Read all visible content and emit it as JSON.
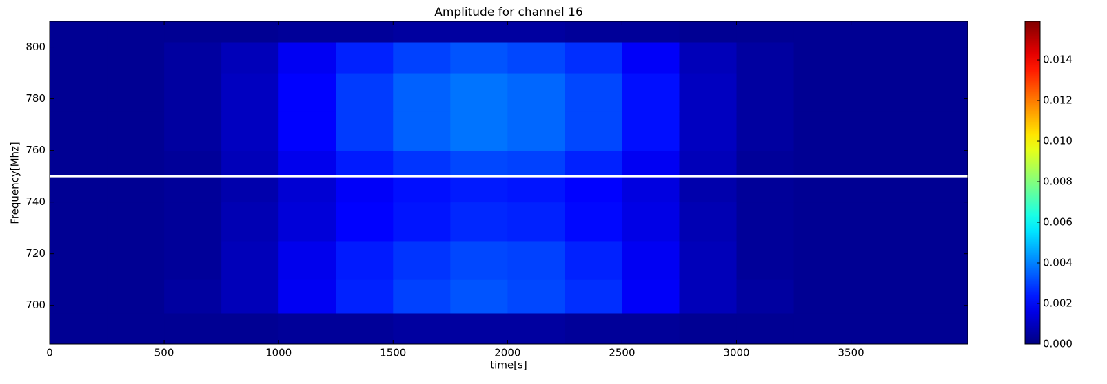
{
  "chart_data": {
    "type": "heatmap",
    "title": "Amplitude for channel 16",
    "x_label": "time[s]",
    "y_label": "Frequency[Mhz]",
    "xlim": [
      0,
      4010
    ],
    "ylim": [
      685,
      810
    ],
    "xticks": [
      0,
      500,
      1000,
      1500,
      2000,
      2500,
      3000,
      3500
    ],
    "yticks": [
      700,
      720,
      740,
      760,
      780,
      800
    ],
    "x_edges": [
      0,
      250,
      500,
      750,
      1000,
      1250,
      1500,
      1750,
      2000,
      2250,
      2500,
      2750,
      3000,
      3250,
      3500,
      3750,
      4010
    ],
    "y_edges": [
      685,
      697,
      710,
      725,
      740,
      750,
      760,
      775,
      790,
      802,
      810
    ],
    "values": [
      [
        0.0003,
        0.0003,
        0.0003,
        0.0003,
        0.0004,
        0.0004,
        0.0005,
        0.0005,
        0.0005,
        0.0004,
        0.0004,
        0.0003,
        0.0003,
        0.0003,
        0.0003,
        0.0003
      ],
      [
        0.0003,
        0.0003,
        0.0005,
        0.0009,
        0.0018,
        0.0025,
        0.003,
        0.0033,
        0.0031,
        0.0027,
        0.0019,
        0.0009,
        0.0005,
        0.0003,
        0.0003,
        0.0003
      ],
      [
        0.0003,
        0.0003,
        0.0004,
        0.0009,
        0.0017,
        0.0024,
        0.0028,
        0.0031,
        0.003,
        0.0025,
        0.0018,
        0.0009,
        0.0004,
        0.0003,
        0.0003,
        0.0003
      ],
      [
        0.0003,
        0.0003,
        0.0004,
        0.0008,
        0.0014,
        0.002,
        0.0023,
        0.0026,
        0.0025,
        0.0021,
        0.0016,
        0.0008,
        0.0004,
        0.0003,
        0.0003,
        0.0003
      ],
      [
        0.0003,
        0.0003,
        0.0004,
        0.0007,
        0.0013,
        0.0019,
        0.0022,
        0.0024,
        0.0023,
        0.002,
        0.0015,
        0.0007,
        0.0004,
        0.0003,
        0.0003,
        0.0003
      ],
      [
        0.0003,
        0.0003,
        0.0004,
        0.0009,
        0.0017,
        0.0024,
        0.0028,
        0.0031,
        0.003,
        0.0025,
        0.0018,
        0.0009,
        0.0004,
        0.0003,
        0.0003,
        0.0003
      ],
      [
        0.0003,
        0.0003,
        0.0005,
        0.001,
        0.002,
        0.0029,
        0.0035,
        0.0038,
        0.0036,
        0.0031,
        0.0022,
        0.001,
        0.0005,
        0.0003,
        0.0003,
        0.0003
      ],
      [
        0.0003,
        0.0003,
        0.0005,
        0.001,
        0.002,
        0.0029,
        0.0035,
        0.0038,
        0.0036,
        0.0031,
        0.0022,
        0.001,
        0.0005,
        0.0003,
        0.0003,
        0.0003
      ],
      [
        0.0003,
        0.0003,
        0.0005,
        0.0009,
        0.0018,
        0.0025,
        0.003,
        0.0033,
        0.0031,
        0.0027,
        0.0019,
        0.0009,
        0.0005,
        0.0003,
        0.0003,
        0.0003
      ],
      [
        0.0003,
        0.0003,
        0.0003,
        0.0003,
        0.0004,
        0.0004,
        0.0005,
        0.0005,
        0.0005,
        0.0004,
        0.0004,
        0.0003,
        0.0003,
        0.0003,
        0.0003,
        0.0003
      ]
    ],
    "colormap": "jet",
    "clim": [
      0,
      0.0159
    ],
    "cticks": [
      {
        "value": 0,
        "label": "0.000"
      },
      {
        "value": 0.002,
        "label": "0.002"
      },
      {
        "value": 0.004,
        "label": "0.004"
      },
      {
        "value": 0.006,
        "label": "0.006"
      },
      {
        "value": 0.008,
        "label": "0.008"
      },
      {
        "value": 0.01,
        "label": "0.010"
      },
      {
        "value": 0.012,
        "label": "0.012"
      },
      {
        "value": 0.014,
        "label": "0.014"
      }
    ],
    "hline": 750,
    "hline_color": "#ffffff"
  }
}
